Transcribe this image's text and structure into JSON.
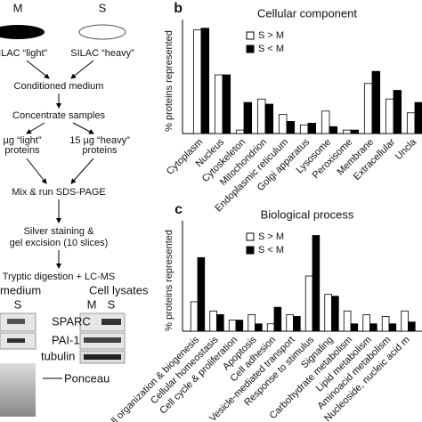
{
  "flow": {
    "m_label": "M",
    "s_label": "S",
    "light": "SILAC “light”",
    "heavy": "SILAC “heavy”",
    "step1": "Conditioned medium",
    "step2": "Concentrate samples",
    "light_amount": [
      "µg “light”",
      "proteins"
    ],
    "heavy_amount": [
      "15 µg “heavy”",
      "proteins"
    ],
    "step3": "Mix & run SDS-PAGE",
    "step4": [
      "Silver staining &",
      "gel excision (10 slices)"
    ],
    "step5": "Tryptic digestion + LC-MS"
  },
  "blots": {
    "medium_title": "medium",
    "medium_lane": "S",
    "lysates_title": "Cell lysates",
    "lysates_lanes": [
      "M",
      "S"
    ],
    "bands": [
      "SPARC",
      "PAI-1",
      "tubulin"
    ],
    "ponceau": "Ponceau"
  },
  "chart_data": [
    {
      "type": "bar",
      "panel": "b",
      "title": "Cellular component",
      "ylabel": "% proteins represented",
      "legend": "upper center",
      "ylim": [
        0,
        66
      ],
      "categories": [
        "Cytoplasm",
        "Nucleus",
        "Cytoskeleton",
        "Mitochondrion",
        "Endoplasmic reticulum",
        "Golgi apparatus",
        "Lysosome",
        "Peroxisome",
        "Membrane",
        "Extracellular",
        "Uncla"
      ],
      "series": [
        {
          "name": "S > M",
          "color": "#ffffff",
          "values": [
            60,
            34,
            2,
            20,
            11,
            5,
            13,
            2,
            29,
            20,
            12
          ]
        },
        {
          "name": "S < M",
          "color": "#000000",
          "values": [
            61,
            34,
            18,
            17,
            7,
            6,
            4,
            2,
            36,
            25,
            18
          ]
        }
      ]
    },
    {
      "type": "bar",
      "panel": "c",
      "title": "Biological process",
      "ylabel": "% proteins represented",
      "legend": "upper center",
      "ylim": [
        0,
        60
      ],
      "categories": [
        "Cell organization & biogenesis",
        "Cellular homeostasis",
        "Cell cycle & proliferation",
        "Apoptosis",
        "Cell adhesion",
        "Vesicle-mediated transport",
        "Response to stimulus",
        "Signaling",
        "Carbohydrate metabolism",
        "Lipid metabolism",
        "Aminoacid metabolism",
        "Nucleoside, nucleic acid m"
      ],
      "series": [
        {
          "name": "S > M",
          "color": "#ffffff",
          "values": [
            16,
            11,
            6,
            9,
            4,
            9,
            30,
            20,
            11,
            9,
            8,
            11
          ]
        },
        {
          "name": "S < M",
          "color": "#000000",
          "values": [
            40,
            9,
            6,
            4,
            13,
            8,
            52,
            19,
            4,
            4,
            4,
            5
          ]
        }
      ]
    }
  ]
}
